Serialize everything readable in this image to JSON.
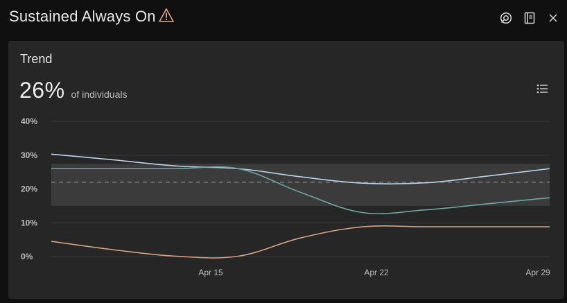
{
  "header": {
    "title": "Sustained Always On",
    "icons": [
      "warning-icon",
      "share-icon",
      "notebook-icon",
      "close-icon"
    ]
  },
  "card": {
    "title": "Trend",
    "metric_value": "26%",
    "metric_unit": "of individuals",
    "legend_icon": "list-icon"
  },
  "colors": {
    "series_blue": "#b9d2ea",
    "series_teal": "#6fa69f",
    "series_orange": "#d7a284",
    "reference": "#8c8c8c",
    "band": "#3b3b3b",
    "warning": "#e3a88a"
  },
  "chart_data": {
    "type": "line",
    "y_ticks": [
      "40%",
      "30%",
      "20%",
      "10%",
      "0%"
    ],
    "x_ticks": [
      "Apr 15",
      "Apr 22",
      "Apr 29"
    ],
    "ylim": [
      0,
      40
    ],
    "grid": true,
    "reference_line": 22,
    "band": [
      15,
      27.5
    ],
    "series": [
      {
        "color": "#b9d2ea",
        "values": [
          30.3,
          28.6,
          26.8,
          26.0,
          23.6,
          21.7,
          21.8,
          23.8,
          26.0
        ]
      },
      {
        "color": "#6fa69f",
        "values": [
          26.0,
          26.0,
          26.0,
          26.0,
          19.0,
          13.0,
          13.8,
          15.6,
          17.4
        ]
      },
      {
        "color": "#d7a284",
        "values": [
          4.5,
          2.0,
          0.1,
          0.1,
          5.5,
          8.8,
          8.8,
          8.8,
          8.8
        ]
      }
    ]
  }
}
